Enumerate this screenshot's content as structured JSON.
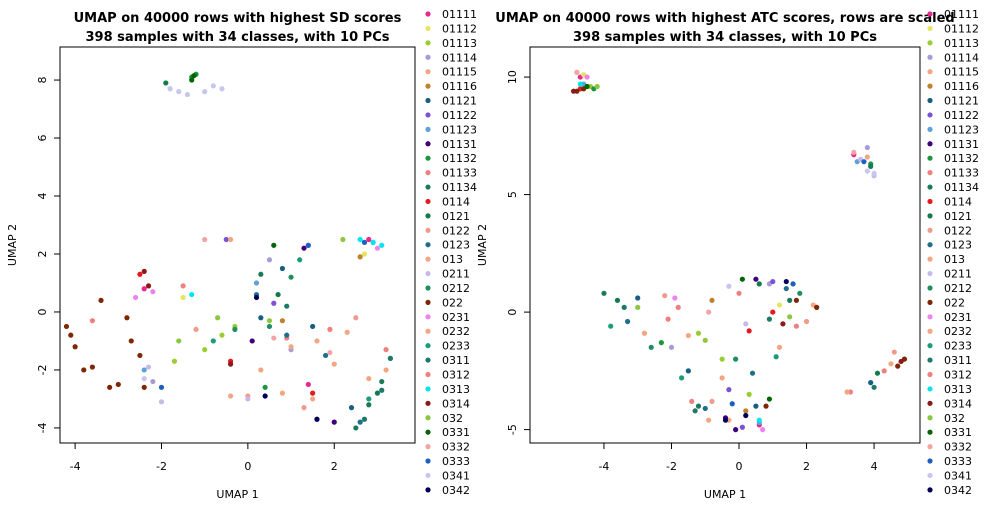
{
  "chart_data": [
    {
      "type": "scatter",
      "title": "UMAP on 40000 rows with highest SD scores",
      "subtitle": "398 samples with 34 classes, with 10 PCs",
      "x_label": "UMAP 1",
      "y_label": "UMAP 2",
      "xlim": [
        -4.35,
        3.87
      ],
      "ylim": [
        -4.52,
        9.14
      ],
      "xticks": [
        -4,
        -2,
        0,
        2
      ],
      "yticks": [
        -4,
        -2,
        0,
        2,
        4,
        6,
        8
      ],
      "series": [
        {
          "name": "01111",
          "color": "#e7298a",
          "x": [
            -2.4,
            1.4,
            2.8
          ],
          "y": [
            0.8,
            -2.5,
            2.5
          ]
        },
        {
          "name": "01112",
          "color": "#e6e65c",
          "x": [
            2.7,
            -1.5
          ],
          "y": [
            2.0,
            0.5
          ]
        },
        {
          "name": "01113",
          "color": "#9acd32",
          "x": [
            -1.0,
            -0.6,
            -1.7,
            -0.3
          ],
          "y": [
            -1.3,
            -0.8,
            -1.7,
            -0.5
          ]
        },
        {
          "name": "01114",
          "color": "#a89bd8",
          "x": [
            -2.2,
            0.5,
            1.0
          ],
          "y": [
            -2.4,
            1.8,
            -1.3
          ]
        },
        {
          "name": "01115",
          "color": "#f4a582",
          "x": [
            1.5,
            2.0,
            2.8,
            3.2
          ],
          "y": [
            -3.0,
            -1.8,
            -2.3,
            -2.0
          ]
        },
        {
          "name": "01116",
          "color": "#bf812d",
          "x": [
            2.6,
            0.8
          ],
          "y": [
            1.9,
            -0.3
          ]
        },
        {
          "name": "01121",
          "color": "#17607f",
          "x": [
            0.3,
            0.8,
            2.4,
            1.5
          ],
          "y": [
            -0.2,
            1.5,
            -3.3,
            -0.5
          ]
        },
        {
          "name": "01122",
          "color": "#7b52d6",
          "x": [
            1.4,
            0.6,
            -0.5
          ],
          "y": [
            2.3,
            0.3,
            2.5
          ]
        },
        {
          "name": "01123",
          "color": "#5ba3d9",
          "x": [
            -2.4,
            0.2,
            2.9
          ],
          "y": [
            -2.0,
            1.0,
            2.4
          ]
        },
        {
          "name": "01131",
          "color": "#3f007d",
          "x": [
            1.3,
            2.0,
            0.1
          ],
          "y": [
            2.2,
            -3.8,
            -1.0
          ]
        },
        {
          "name": "01132",
          "color": "#1a9641",
          "x": [
            -1.3,
            -1.2,
            0.4
          ],
          "y": [
            8.1,
            8.2,
            -2.6
          ]
        },
        {
          "name": "01133",
          "color": "#f08080",
          "x": [
            0.9,
            1.9,
            3.3
          ],
          "y": [
            -0.9,
            -0.6,
            -1.6
          ]
        },
        {
          "name": "01134",
          "color": "#1b7a5a",
          "x": [
            2.8,
            3.1,
            2.5,
            0.3
          ],
          "y": [
            -3.2,
            -2.4,
            -4.0,
            1.3
          ]
        },
        {
          "name": "0114",
          "color": "#e41a1c",
          "x": [
            -2.5,
            1.5,
            -0.4
          ],
          "y": [
            1.3,
            -2.8,
            -1.7
          ]
        },
        {
          "name": "0121",
          "color": "#137a4b",
          "x": [
            -1.9,
            0.7,
            3.0
          ],
          "y": [
            7.9,
            0.6,
            -2.8
          ]
        },
        {
          "name": "0122",
          "color": "#f29b8b",
          "x": [
            -1.2,
            0.0,
            1.3,
            2.5
          ],
          "y": [
            -0.6,
            -2.9,
            -3.3,
            -0.2
          ]
        },
        {
          "name": "0123",
          "color": "#1f6f8b",
          "x": [
            0.2,
            0.9,
            2.6,
            1.8
          ],
          "y": [
            0.6,
            -0.8,
            -3.8,
            -1.5
          ]
        },
        {
          "name": "013",
          "color": "#f4a582",
          "x": [
            -0.4,
            0.3,
            1.6
          ],
          "y": [
            -2.9,
            -2.0,
            -1.0
          ]
        },
        {
          "name": "0211",
          "color": "#c9b8ea",
          "x": [
            -2.3,
            -2.0,
            0.0
          ],
          "y": [
            -1.9,
            -3.1,
            -3.0
          ]
        },
        {
          "name": "0212",
          "color": "#1f8f5f",
          "x": [
            1.0,
            0.5,
            -0.3
          ],
          "y": [
            1.2,
            -0.5,
            -0.6
          ]
        },
        {
          "name": "022",
          "color": "#7f2704",
          "x": [
            -4.2,
            -4.0,
            -3.8,
            -3.2,
            -3.0,
            -2.7,
            -2.5,
            -2.8,
            -3.4,
            -4.1,
            -3.6,
            -2.4
          ],
          "y": [
            -0.5,
            -1.2,
            -2.0,
            -2.6,
            -2.5,
            -1.0,
            -1.5,
            -0.2,
            0.4,
            -0.8,
            -1.9,
            -2.6
          ]
        },
        {
          "name": "0231",
          "color": "#ee82ee",
          "x": [
            -2.6,
            -2.2,
            3.0
          ],
          "y": [
            0.5,
            0.7,
            2.2
          ]
        },
        {
          "name": "0232",
          "color": "#f4a582",
          "x": [
            -0.4,
            0.8,
            1.0,
            2.3
          ],
          "y": [
            2.5,
            -2.8,
            -1.2,
            -0.7
          ]
        },
        {
          "name": "0233",
          "color": "#1b9e77",
          "x": [
            1.2,
            -0.8,
            2.8
          ],
          "y": [
            1.8,
            -1.0,
            -3.0
          ]
        },
        {
          "name": "0311",
          "color": "#1b7a6a",
          "x": [
            3.1,
            3.3,
            2.7,
            0.9
          ],
          "y": [
            -2.7,
            -1.6,
            -3.7,
            0.2
          ]
        },
        {
          "name": "0312",
          "color": "#f08080",
          "x": [
            -3.6,
            -1.5,
            1.6,
            3.2
          ],
          "y": [
            -0.3,
            0.9,
            -3.7,
            -1.3
          ]
        },
        {
          "name": "0313",
          "color": "#00e5ee",
          "x": [
            2.9,
            3.1,
            -1.3,
            2.6
          ],
          "y": [
            2.4,
            2.3,
            0.6,
            2.5
          ]
        },
        {
          "name": "0314",
          "color": "#8b1a1a",
          "x": [
            -2.4,
            -2.3,
            -0.4
          ],
          "y": [
            1.4,
            0.9,
            -1.8
          ]
        },
        {
          "name": "032",
          "color": "#8dc63f",
          "x": [
            -1.6,
            -0.7,
            2.2,
            0.5
          ],
          "y": [
            -1.0,
            -0.2,
            2.5,
            -0.3
          ]
        },
        {
          "name": "0331",
          "color": "#006400",
          "x": [
            -1.25,
            -1.3,
            0.6
          ],
          "y": [
            8.15,
            8.0,
            2.3
          ]
        },
        {
          "name": "0332",
          "color": "#f4a4a4",
          "x": [
            -1.0,
            0.6,
            1.9
          ],
          "y": [
            2.5,
            -0.9,
            -1.4
          ]
        },
        {
          "name": "0333",
          "color": "#1f5fbf",
          "x": [
            -2.0,
            1.4,
            2.7
          ],
          "y": [
            -2.6,
            2.3,
            2.4
          ]
        },
        {
          "name": "0341",
          "color": "#c6c6f0",
          "x": [
            -1.8,
            -1.6,
            -1.4,
            -1.0,
            -0.8,
            -0.6,
            -2.4
          ],
          "y": [
            7.7,
            7.6,
            7.5,
            7.6,
            7.8,
            7.7,
            -2.3
          ]
        },
        {
          "name": "0342",
          "color": "#00005a",
          "x": [
            1.6,
            0.4,
            0.2
          ],
          "y": [
            -3.7,
            -2.9,
            0.5
          ]
        }
      ]
    },
    {
      "type": "scatter",
      "title": "UMAP on 40000 rows with highest ATC scores, rows are scaled",
      "subtitle": "398 samples with 34 classes, with 10 PCs",
      "x_label": "UMAP 1",
      "y_label": "UMAP 2",
      "xlim": [
        -6.19,
        5.36
      ],
      "ylim": [
        -5.57,
        11.28
      ],
      "xticks": [
        -4,
        -2,
        0,
        2,
        4
      ],
      "yticks": [
        -5,
        0,
        5,
        10
      ],
      "series": [
        {
          "name": "01111",
          "color": "#e7298a",
          "x": [
            -4.7,
            0.6,
            3.4
          ],
          "y": [
            10.0,
            -4.8,
            6.7
          ]
        },
        {
          "name": "01112",
          "color": "#e6e65c",
          "x": [
            -4.6,
            1.2
          ],
          "y": [
            10.1,
            0.3
          ]
        },
        {
          "name": "01113",
          "color": "#9acd32",
          "x": [
            -4.4,
            -0.5,
            -1.2,
            0.3
          ],
          "y": [
            9.6,
            -2.0,
            -0.9,
            -3.5
          ]
        },
        {
          "name": "01114",
          "color": "#a89bd8",
          "x": [
            3.8,
            0.9,
            -2.0
          ],
          "y": [
            7.0,
            1.2,
            -1.5
          ]
        },
        {
          "name": "01115",
          "color": "#f4a582",
          "x": [
            -4.8,
            4.5,
            3.8,
            -0.3
          ],
          "y": [
            10.2,
            -2.2,
            6.6,
            -4.6
          ]
        },
        {
          "name": "01116",
          "color": "#bf812d",
          "x": [
            0.2,
            -0.8
          ],
          "y": [
            -4.2,
            0.5
          ]
        },
        {
          "name": "01121",
          "color": "#17607f",
          "x": [
            -3.0,
            -1.5,
            0.5,
            3.9
          ],
          "y": [
            0.6,
            -2.5,
            -4.0,
            -3.0
          ]
        },
        {
          "name": "01122",
          "color": "#7b52d6",
          "x": [
            1.0,
            0.1,
            -0.3
          ],
          "y": [
            1.3,
            -4.9,
            -3.3
          ]
        },
        {
          "name": "01123",
          "color": "#5ba3d9",
          "x": [
            -4.6,
            3.5,
            0.6
          ],
          "y": [
            9.7,
            6.4,
            -4.7
          ]
        },
        {
          "name": "01131",
          "color": "#3f007d",
          "x": [
            0.5,
            -0.4,
            -0.1
          ],
          "y": [
            1.4,
            -4.5,
            -5.0
          ]
        },
        {
          "name": "01132",
          "color": "#1a9641",
          "x": [
            -4.3,
            3.9,
            -2.3
          ],
          "y": [
            9.5,
            6.3,
            -1.3
          ]
        },
        {
          "name": "01133",
          "color": "#f08080",
          "x": [
            3.3,
            -1.8,
            1.7
          ],
          "y": [
            -3.4,
            0.2,
            -0.6
          ]
        },
        {
          "name": "01134",
          "color": "#1b7a5a",
          "x": [
            3.9,
            -4.0,
            -1.2,
            1.5
          ],
          "y": [
            6.2,
            0.8,
            -4.0,
            0.5
          ]
        },
        {
          "name": "0114",
          "color": "#e41a1c",
          "x": [
            -4.7,
            0.3,
            1.0
          ],
          "y": [
            9.5,
            -0.8,
            0.0
          ]
        },
        {
          "name": "0121",
          "color": "#137a4b",
          "x": [
            -3.6,
            0.6,
            4.1
          ],
          "y": [
            0.5,
            1.2,
            -2.6
          ]
        },
        {
          "name": "0122",
          "color": "#f29b8b",
          "x": [
            -2.2,
            -0.8,
            2.0,
            4.6
          ],
          "y": [
            0.7,
            -3.8,
            -0.4,
            -1.7
          ]
        },
        {
          "name": "0123",
          "color": "#1f6f8b",
          "x": [
            -3.3,
            -1.0,
            0.4,
            1.4
          ],
          "y": [
            -0.4,
            -4.1,
            -2.6,
            1.0
          ]
        },
        {
          "name": "013",
          "color": "#f4a582",
          "x": [
            -1.5,
            -0.9,
            2.2
          ],
          "y": [
            -1.0,
            -4.6,
            0.3
          ]
        },
        {
          "name": "0211",
          "color": "#c9b8ea",
          "x": [
            4.0,
            3.6,
            0.2
          ],
          "y": [
            5.8,
            6.5,
            -0.5
          ]
        },
        {
          "name": "0212",
          "color": "#1f8f5f",
          "x": [
            -2.6,
            -0.1,
            1.8
          ],
          "y": [
            -1.5,
            -2.0,
            0.8
          ]
        },
        {
          "name": "022",
          "color": "#7f2704",
          "x": [
            -4.8,
            -4.6,
            1.7,
            4.9,
            4.7,
            2.3,
            0.8
          ],
          "y": [
            9.4,
            9.5,
            0.5,
            -2.0,
            -2.3,
            0.2,
            -4.0
          ]
        },
        {
          "name": "0231",
          "color": "#ee82ee",
          "x": [
            -4.5,
            0.7,
            -1.9
          ],
          "y": [
            10.0,
            -5.0,
            0.6
          ]
        },
        {
          "name": "0232",
          "color": "#f4a582",
          "x": [
            -0.5,
            1.2,
            -2.8,
            3.2
          ],
          "y": [
            -2.8,
            -1.5,
            -0.9,
            -3.4
          ]
        },
        {
          "name": "0233",
          "color": "#1b9e77",
          "x": [
            -3.8,
            -1.7,
            1.1
          ],
          "y": [
            -0.6,
            -2.8,
            -1.9
          ]
        },
        {
          "name": "0311",
          "color": "#1b7a6a",
          "x": [
            -3.4,
            0.9,
            4.0,
            -1.3
          ],
          "y": [
            0.2,
            -0.3,
            -3.2,
            -4.2
          ]
        },
        {
          "name": "0312",
          "color": "#f08080",
          "x": [
            -2.1,
            0.0,
            4.3,
            -1.4
          ],
          "y": [
            -0.3,
            0.8,
            -2.5,
            -3.8
          ]
        },
        {
          "name": "0313",
          "color": "#00e5ee",
          "x": [
            -4.7,
            0.6
          ],
          "y": [
            9.7,
            -4.6
          ]
        },
        {
          "name": "0314",
          "color": "#8b1a1a",
          "x": [
            -4.9,
            1.3,
            4.8
          ],
          "y": [
            9.4,
            -0.5,
            -2.1
          ]
        },
        {
          "name": "032",
          "color": "#8dc63f",
          "x": [
            -4.2,
            -1.0,
            1.5,
            -3.0
          ],
          "y": [
            9.6,
            -1.2,
            -0.2,
            0.2
          ]
        },
        {
          "name": "0331",
          "color": "#006400",
          "x": [
            -4.5,
            0.9,
            0.1
          ],
          "y": [
            9.6,
            -3.7,
            1.4
          ]
        },
        {
          "name": "0332",
          "color": "#f4a4a4",
          "x": [
            -4.8,
            3.4,
            -0.9
          ],
          "y": [
            10.2,
            6.8,
            0.0
          ]
        },
        {
          "name": "0333",
          "color": "#1f5fbf",
          "x": [
            3.7,
            1.6,
            -0.2
          ],
          "y": [
            6.4,
            1.2,
            -3.9
          ]
        },
        {
          "name": "0341",
          "color": "#c6c6f0",
          "x": [
            3.8,
            4.0,
            -0.3
          ],
          "y": [
            6.0,
            5.9,
            1.1
          ]
        },
        {
          "name": "0342",
          "color": "#00005a",
          "x": [
            1.4,
            -0.4,
            0.2
          ],
          "y": [
            1.3,
            -4.6,
            -4.4
          ]
        }
      ]
    }
  ]
}
